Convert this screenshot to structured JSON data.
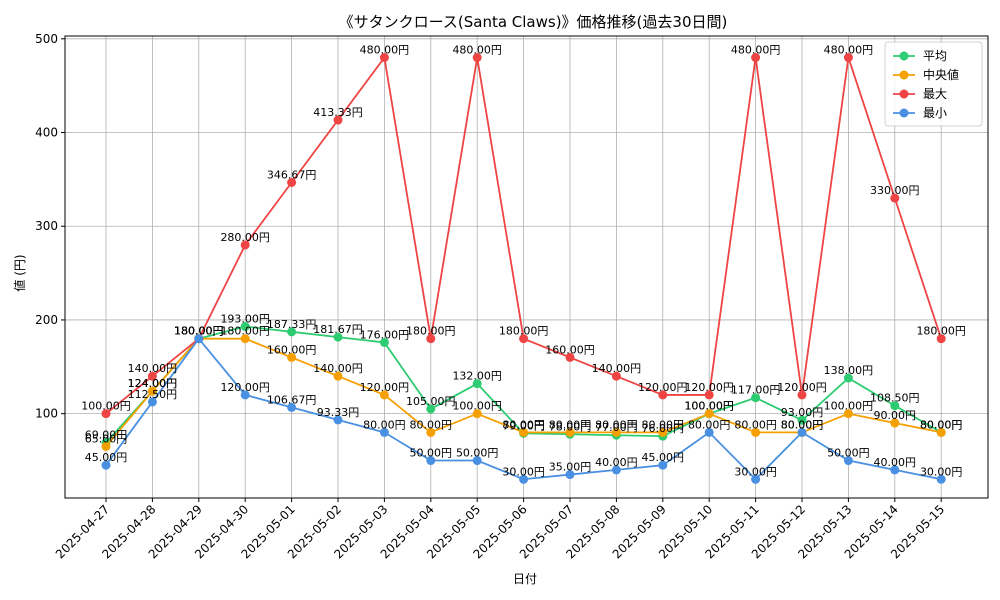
{
  "chart_data": {
    "type": "line",
    "title": "《サタンクロース(Santa Claws)》価格推移(過去30日間)",
    "xlabel": "日付",
    "ylabel": "値 (円)",
    "ylim": [
      10,
      503
    ],
    "yticks": [
      100,
      200,
      300,
      400,
      500
    ],
    "grid": true,
    "legend_position": "top-right",
    "categories": [
      "2025-04-27",
      "2025-04-28",
      "2025-04-29",
      "2025-04-30",
      "2025-05-01",
      "2025-05-02",
      "2025-05-03",
      "2025-05-04",
      "2025-05-05",
      "2025-05-06",
      "2025-05-07",
      "2025-05-08",
      "2025-05-09",
      "2025-05-10",
      "2025-05-11",
      "2025-05-12",
      "2025-05-13",
      "2025-05-14",
      "2025-05-15"
    ],
    "series": [
      {
        "name": "平均",
        "color": "#2ecc71",
        "values": [
          69.0,
          124.0,
          180.0,
          193.0,
          187.33,
          181.67,
          176.0,
          105.0,
          132.0,
          79.0,
          78.0,
          77.0,
          76.0,
          100.0,
          117.0,
          93.0,
          138.0,
          108.5,
          80.0
        ],
        "labels": [
          "69.00円",
          "124.00円",
          "180.00円",
          "193.00円",
          "187.33円",
          "181.67円",
          "176.00円",
          "105.00円",
          "132.00円",
          "79.00円",
          "78.00円",
          "77.00円",
          "76.00円",
          "100.00円",
          "117.00円",
          "93.00円",
          "138.00円",
          "108.50円",
          "80.00円"
        ]
      },
      {
        "name": "中央値",
        "color": "#f5a000",
        "values": [
          65.0,
          124.0,
          180.0,
          180.0,
          160.0,
          140.0,
          120.0,
          80.0,
          100.0,
          80.0,
          80.0,
          80.0,
          80.0,
          100.0,
          80.0,
          80.0,
          100.0,
          90.0,
          80.0
        ],
        "labels": [
          "65.00円",
          "124.00円",
          "180.00円",
          "180.00円",
          "160.00円",
          "140.00円",
          "120.00円",
          "80.00円",
          "100.00円",
          "80.00円",
          "80.00円",
          "80.00円",
          "80.00円",
          "100.00円",
          "80.00円",
          "80.00円",
          "100.00円",
          "90.00円",
          "80.00円"
        ]
      },
      {
        "name": "最大",
        "color": "#ef4444",
        "values": [
          100.0,
          140.0,
          180.0,
          280.0,
          346.67,
          413.33,
          480.0,
          180.0,
          480.0,
          180.0,
          160.0,
          140.0,
          120.0,
          120.0,
          480.0,
          120.0,
          480.0,
          330.0,
          180.0
        ],
        "labels": [
          "100.00円",
          "140.00円",
          "180.00円",
          "280.00円",
          "346.67円",
          "413.33円",
          "480.00円",
          "180.00円",
          "480.00円",
          "180.00円",
          "160.00円",
          "140.00円",
          "120.00円",
          "120.00円",
          "480.00円",
          "120.00円",
          "480.00円",
          "330.00円",
          "180.00円"
        ]
      },
      {
        "name": "最小",
        "color": "#4a90e2",
        "values": [
          45.0,
          112.5,
          180.0,
          120.0,
          106.67,
          93.33,
          80.0,
          50.0,
          50.0,
          30.0,
          35.0,
          40.0,
          45.0,
          80.0,
          30.0,
          80.0,
          50.0,
          40.0,
          30.0
        ],
        "labels": [
          "45.00円",
          "112.50円",
          "180.00円",
          "120.00円",
          "106.67円",
          "93.33円",
          "80.00円",
          "50.00円",
          "50.00円",
          "30.00円",
          "35.00円",
          "40.00円",
          "45.00円",
          "80.00円",
          "30.00円",
          "80.00円",
          "50.00円",
          "40.00円",
          "30.00円"
        ]
      }
    ]
  }
}
